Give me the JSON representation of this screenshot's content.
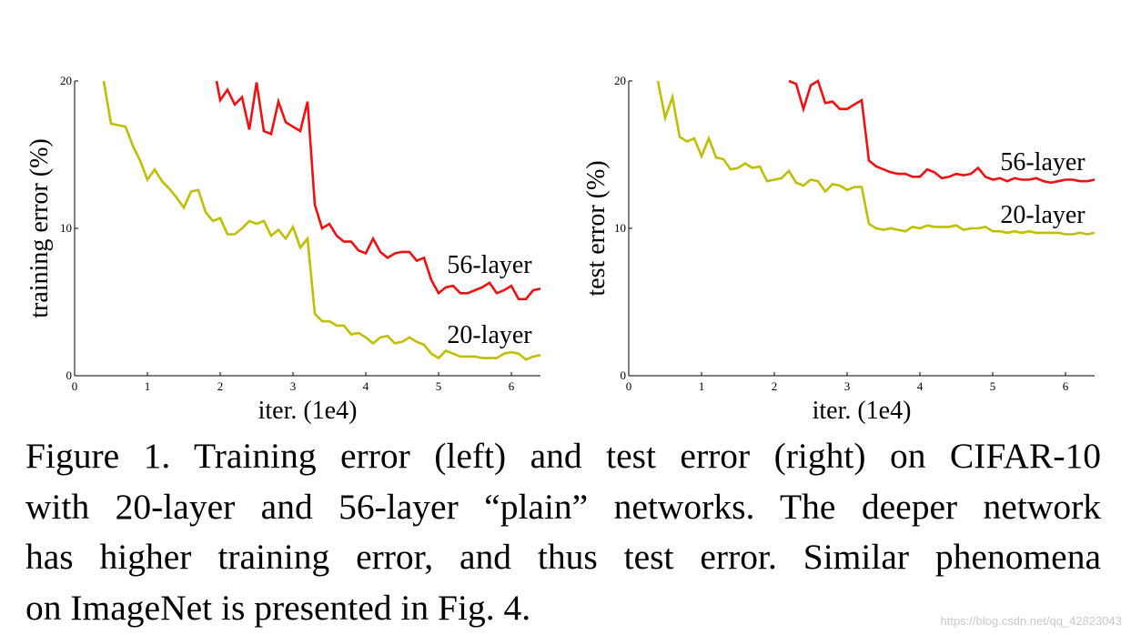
{
  "chart_data": [
    {
      "type": "line",
      "title": "",
      "xlabel": "iter. (1e4)",
      "ylabel": "training error (%)",
      "xlim": [
        0,
        6.4
      ],
      "ylim": [
        0,
        20
      ],
      "xticks": [
        0,
        1,
        2,
        3,
        4,
        5,
        6
      ],
      "yticks": [
        0,
        10,
        20
      ],
      "xtick_labels": [
        "0",
        "1",
        "2",
        "3",
        "4",
        "5",
        "6"
      ],
      "ytick_labels": [
        "0",
        "10",
        "20"
      ],
      "grid": false,
      "legend": "inline labels at right end of lines",
      "series": [
        {
          "name": "56-layer",
          "color": "#ee1111",
          "x": [
            1.95,
            2.0,
            2.1,
            2.2,
            2.3,
            2.4,
            2.5,
            2.6,
            2.7,
            2.8,
            2.9,
            3.0,
            3.1,
            3.2,
            3.3,
            3.4,
            3.5,
            3.6,
            3.7,
            3.8,
            3.9,
            4.0,
            4.1,
            4.2,
            4.3,
            4.4,
            4.5,
            4.6,
            4.7,
            4.8,
            4.9,
            5.0,
            5.1,
            5.2,
            5.3,
            5.4,
            5.5,
            5.6,
            5.7,
            5.8,
            5.9,
            6.0,
            6.1,
            6.2,
            6.3,
            6.4
          ],
          "y": [
            20.0,
            18.7,
            19.4,
            18.4,
            18.9,
            16.7,
            19.9,
            16.6,
            16.4,
            18.6,
            17.2,
            16.9,
            16.6,
            18.6,
            11.6,
            10.0,
            10.3,
            9.5,
            9.1,
            9.1,
            8.5,
            8.3,
            9.3,
            8.4,
            8.0,
            8.3,
            8.4,
            8.4,
            7.8,
            8.0,
            6.5,
            5.6,
            6.0,
            6.1,
            5.6,
            5.6,
            5.8,
            6.0,
            6.3,
            5.6,
            5.8,
            6.1,
            5.2,
            5.2,
            5.8,
            5.9
          ]
        },
        {
          "name": "20-layer",
          "color": "#bfbf00",
          "x": [
            0.4,
            0.5,
            0.6,
            0.7,
            0.8,
            0.9,
            1.0,
            1.1,
            1.2,
            1.3,
            1.4,
            1.5,
            1.6,
            1.7,
            1.8,
            1.9,
            2.0,
            2.1,
            2.2,
            2.3,
            2.4,
            2.5,
            2.6,
            2.7,
            2.8,
            2.9,
            3.0,
            3.1,
            3.2,
            3.3,
            3.4,
            3.5,
            3.6,
            3.7,
            3.8,
            3.9,
            4.0,
            4.1,
            4.2,
            4.3,
            4.4,
            4.5,
            4.6,
            4.7,
            4.8,
            4.9,
            5.0,
            5.1,
            5.2,
            5.3,
            5.4,
            5.5,
            5.6,
            5.7,
            5.8,
            5.9,
            6.0,
            6.1,
            6.2,
            6.3,
            6.4
          ],
          "y": [
            20.0,
            17.1,
            17.0,
            16.9,
            15.6,
            14.6,
            13.3,
            14.0,
            13.2,
            12.7,
            12.1,
            11.4,
            12.5,
            12.6,
            11.1,
            10.5,
            10.7,
            9.6,
            9.6,
            10.0,
            10.5,
            10.3,
            10.5,
            9.5,
            9.9,
            9.3,
            10.1,
            8.7,
            9.3,
            4.2,
            3.7,
            3.7,
            3.4,
            3.4,
            2.8,
            2.9,
            2.6,
            2.2,
            2.6,
            2.7,
            2.2,
            2.3,
            2.6,
            2.3,
            2.1,
            1.5,
            1.2,
            1.7,
            1.5,
            1.3,
            1.3,
            1.3,
            1.2,
            1.2,
            1.2,
            1.5,
            1.6,
            1.5,
            1.1,
            1.3,
            1.4
          ]
        }
      ]
    },
    {
      "type": "line",
      "title": "",
      "xlabel": "iter. (1e4)",
      "ylabel": "test error (%)",
      "xlim": [
        0,
        6.4
      ],
      "ylim": [
        0,
        20
      ],
      "xticks": [
        0,
        1,
        2,
        3,
        4,
        5,
        6
      ],
      "yticks": [
        0,
        10,
        20
      ],
      "xtick_labels": [
        "0",
        "1",
        "2",
        "3",
        "4",
        "5",
        "6"
      ],
      "ytick_labels": [
        "0",
        "10",
        "20"
      ],
      "grid": false,
      "legend": "inline labels at right end of lines",
      "series": [
        {
          "name": "56-layer",
          "color": "#ee1111",
          "x": [
            2.2,
            2.3,
            2.4,
            2.5,
            2.6,
            2.7,
            2.8,
            2.9,
            3.0,
            3.1,
            3.2,
            3.3,
            3.4,
            3.5,
            3.6,
            3.7,
            3.8,
            3.9,
            4.0,
            4.1,
            4.2,
            4.3,
            4.4,
            4.5,
            4.6,
            4.7,
            4.8,
            4.9,
            5.0,
            5.1,
            5.2,
            5.3,
            5.4,
            5.5,
            5.6,
            5.7,
            5.8,
            5.9,
            6.0,
            6.1,
            6.2,
            6.3,
            6.4
          ],
          "y": [
            20.0,
            19.8,
            18.1,
            19.7,
            20.0,
            18.5,
            18.6,
            18.1,
            18.1,
            18.4,
            18.7,
            14.6,
            14.2,
            14.0,
            13.8,
            13.7,
            13.7,
            13.5,
            13.5,
            14.0,
            13.8,
            13.4,
            13.5,
            13.7,
            13.6,
            13.7,
            14.1,
            13.5,
            13.3,
            13.4,
            13.2,
            13.4,
            13.3,
            13.3,
            13.4,
            13.2,
            13.1,
            13.2,
            13.3,
            13.3,
            13.2,
            13.2,
            13.3
          ]
        },
        {
          "name": "20-layer",
          "color": "#bfbf00",
          "x": [
            0.4,
            0.5,
            0.6,
            0.7,
            0.8,
            0.9,
            1.0,
            1.1,
            1.2,
            1.3,
            1.4,
            1.5,
            1.6,
            1.7,
            1.8,
            1.9,
            2.0,
            2.1,
            2.2,
            2.3,
            2.4,
            2.5,
            2.6,
            2.7,
            2.8,
            2.9,
            3.0,
            3.1,
            3.2,
            3.3,
            3.4,
            3.5,
            3.6,
            3.7,
            3.8,
            3.9,
            4.0,
            4.1,
            4.2,
            4.3,
            4.4,
            4.5,
            4.6,
            4.7,
            4.8,
            4.9,
            5.0,
            5.1,
            5.2,
            5.3,
            5.4,
            5.5,
            5.6,
            5.7,
            5.8,
            5.9,
            6.0,
            6.1,
            6.2,
            6.3,
            6.4
          ],
          "y": [
            20.0,
            17.5,
            18.9,
            16.2,
            15.9,
            16.1,
            14.9,
            16.1,
            14.8,
            14.7,
            14.0,
            14.1,
            14.4,
            14.1,
            14.2,
            13.2,
            13.3,
            13.4,
            13.9,
            13.1,
            12.9,
            13.3,
            13.2,
            12.5,
            13.0,
            12.9,
            12.6,
            12.8,
            12.8,
            10.3,
            10.0,
            9.9,
            10.0,
            9.9,
            9.8,
            10.1,
            10.0,
            10.2,
            10.1,
            10.1,
            10.1,
            10.2,
            9.9,
            10.0,
            10.0,
            10.1,
            9.8,
            9.8,
            9.7,
            9.8,
            9.7,
            9.8,
            9.7,
            9.7,
            9.7,
            9.7,
            9.6,
            9.6,
            9.7,
            9.6,
            9.7
          ]
        }
      ]
    }
  ],
  "caption": {
    "line1": "Figure 1. Training error (left) and test error (right) on CIFAR-10",
    "line2": "with 20-layer and 56-layer “plain” networks. The deeper network",
    "line3": "has higher training error, and thus test error. Similar phenomena",
    "line4": "on ImageNet is presented in Fig. 4."
  },
  "watermark": "https://blog.csdn.net/qq_42823043"
}
